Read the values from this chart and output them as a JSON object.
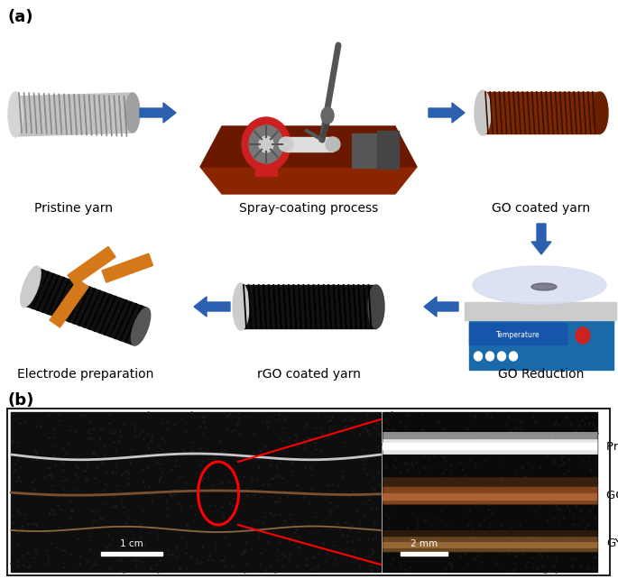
{
  "figure_width": 6.85,
  "figure_height": 6.42,
  "dpi": 100,
  "background_color": "#ffffff",
  "panel_a_label": "(a)",
  "panel_b_label": "(b)",
  "label_fontsize": 13,
  "label_fontweight": "bold",
  "top_row_labels": [
    "Pristine yarn",
    "Spray-coating process",
    "GO coated yarn"
  ],
  "bottom_row_labels": [
    "Electrode preparation",
    "rGO coated yarn",
    "GO Reduction"
  ],
  "process_label_fontsize": 10,
  "arrow_color": "#2b5faf",
  "microscopy_legend": [
    "Pristine yarn",
    "GO coated yarn",
    "GYS"
  ],
  "scale_bar_label_left": "1 cm",
  "scale_bar_label_right": "2 mm"
}
